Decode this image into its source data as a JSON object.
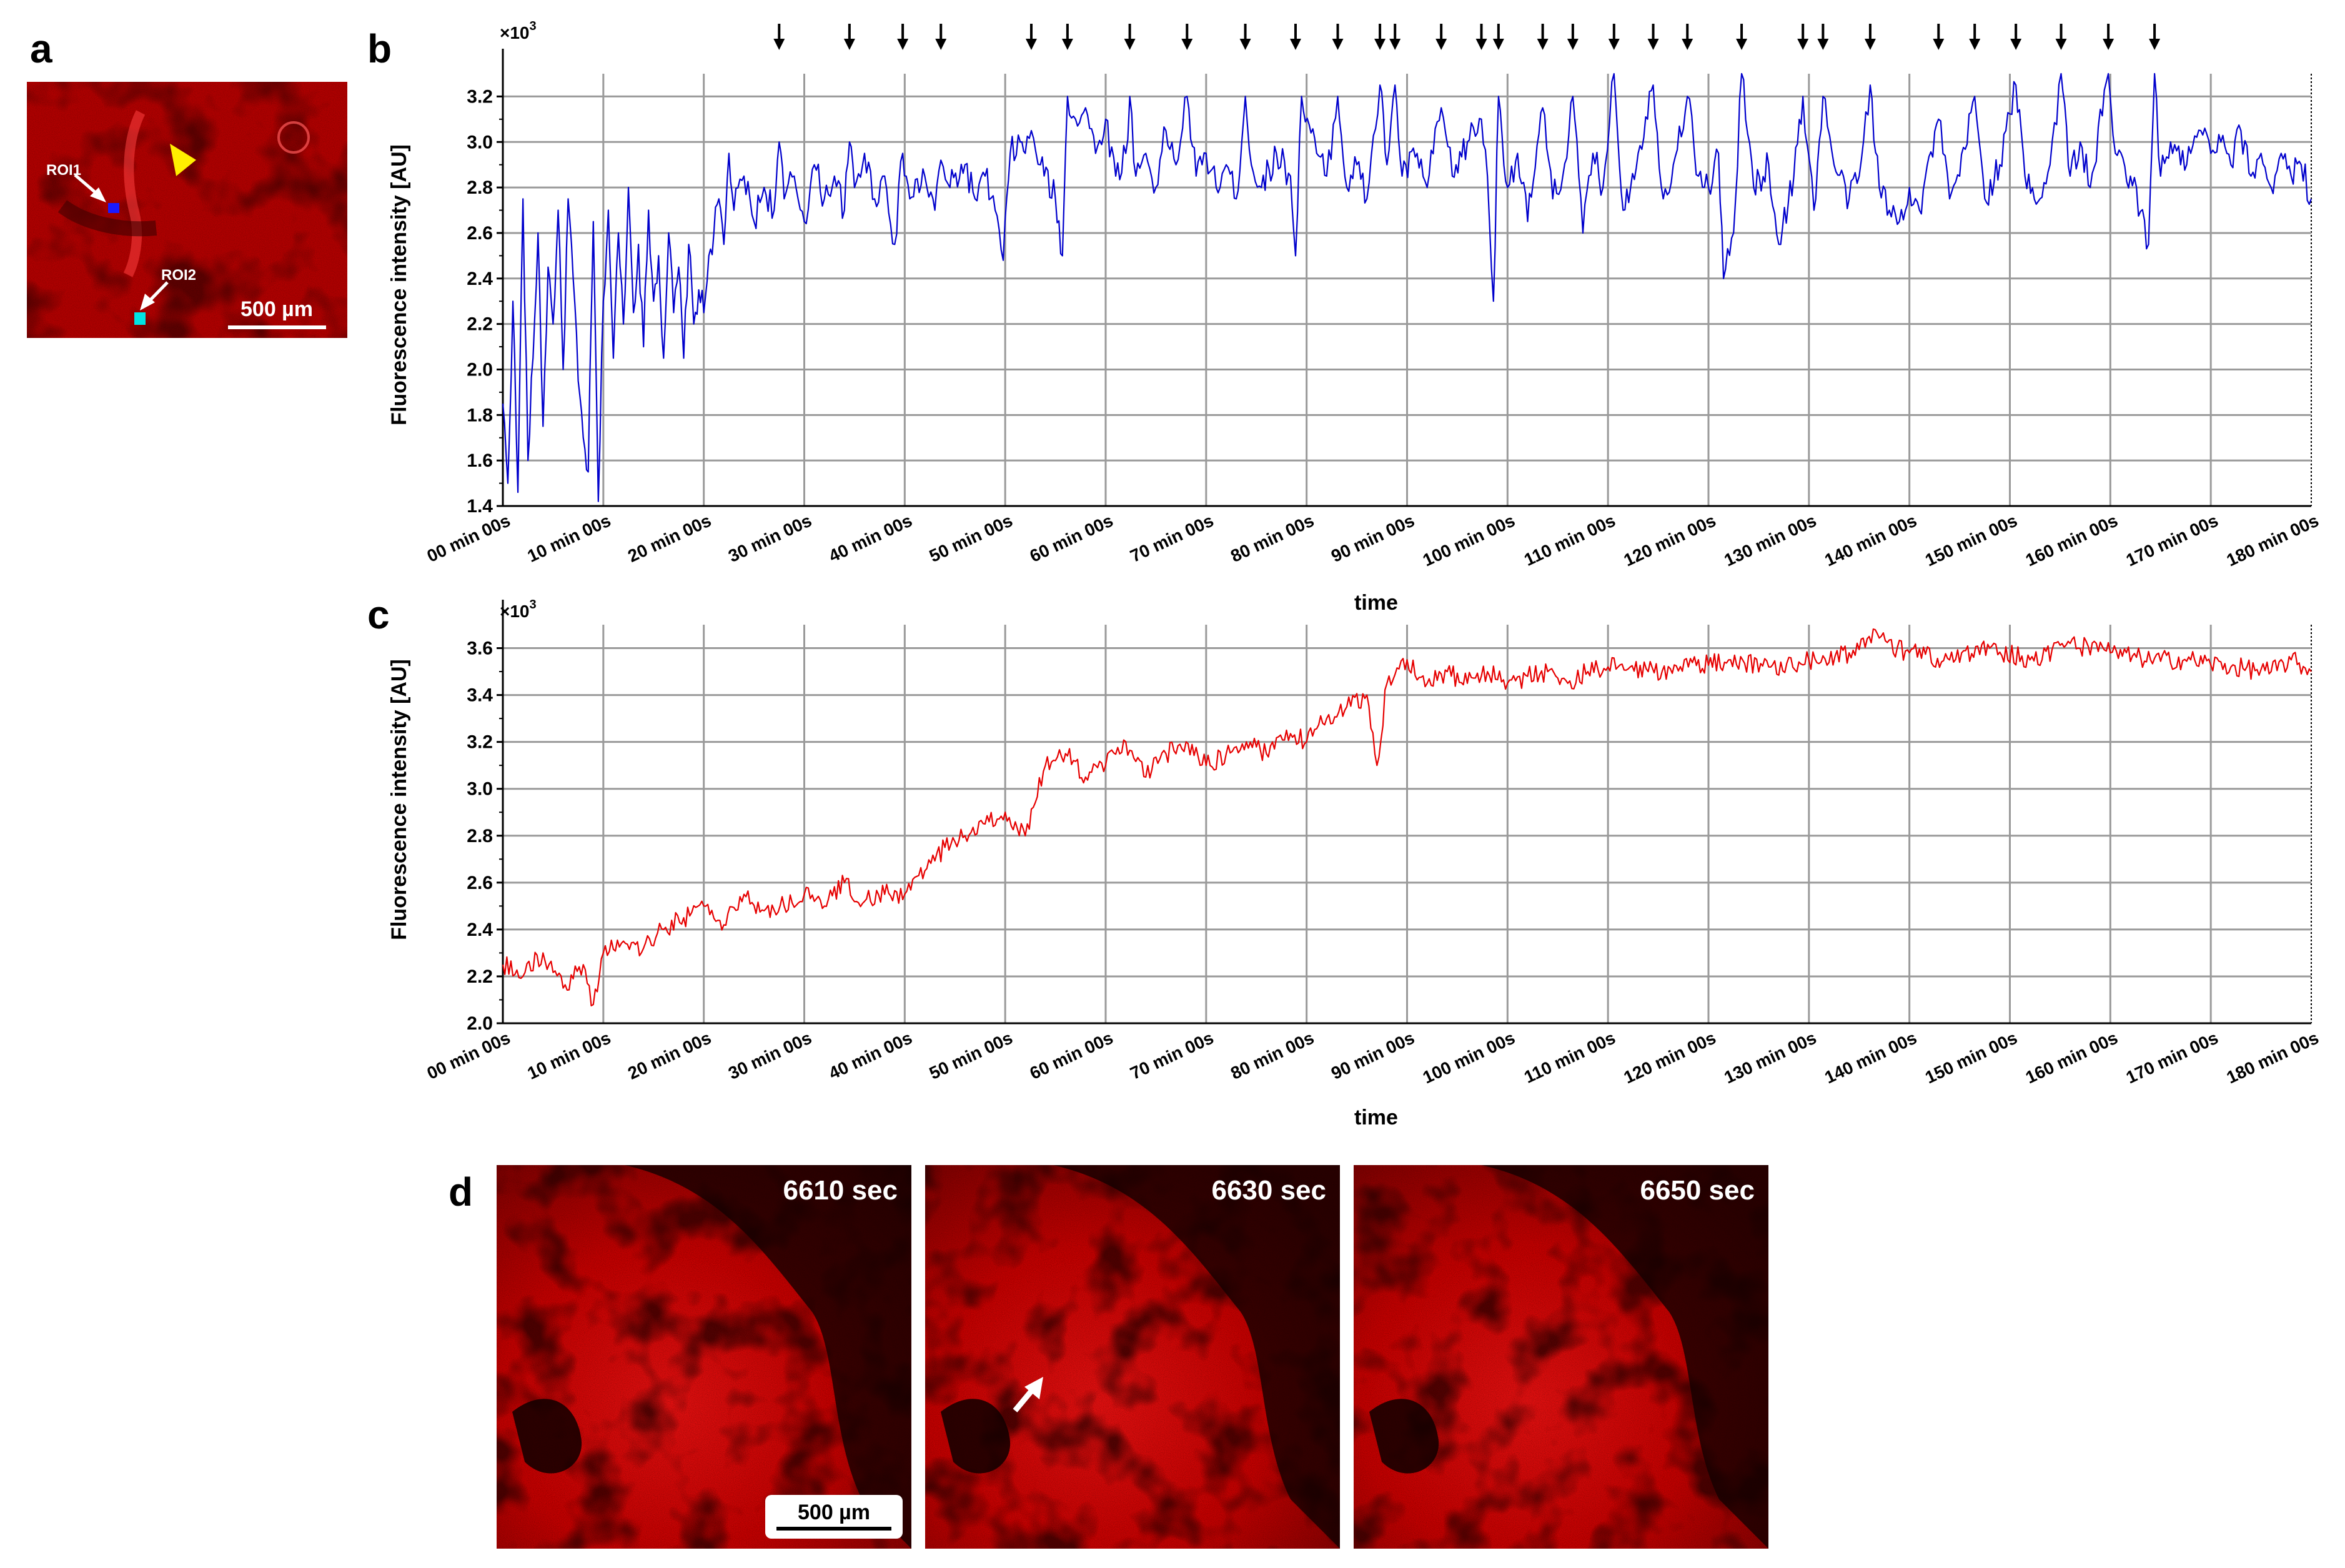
{
  "figure": {
    "panel_a": {
      "letter": "a",
      "roi1_label": "ROI1",
      "roi2_label": "ROI2",
      "scale_bar_label": "500 µm",
      "roi1_color": "#1a1aff",
      "roi2_color": "#00e5e5",
      "arrowhead_color": "#ffee00"
    },
    "panel_b_letter": "b",
    "panel_c_letter": "c",
    "panel_d": {
      "letter": "d",
      "frame_labels": [
        "6610 sec",
        "6630 sec",
        "6650 sec"
      ],
      "scale_bar_label": "500 µm"
    }
  },
  "chart_data": [
    {
      "id": "b",
      "type": "line",
      "color": "#0000cc",
      "xlabel": "time",
      "ylabel": "Fluorescence intensity [AU]",
      "y_multiplier": "×10",
      "y_multiplier_exp": "3",
      "xlim": [
        0,
        180
      ],
      "ylim": [
        1.4,
        3.3
      ],
      "x_ticks": [
        0,
        10,
        20,
        30,
        40,
        50,
        60,
        70,
        80,
        90,
        100,
        110,
        120,
        130,
        140,
        150,
        160,
        170,
        180
      ],
      "x_tick_labels": [
        "00 min 00s",
        "10 min 00s",
        "20 min 00s",
        "30 min 00s",
        "40 min 00s",
        "50 min 00s",
        "60 min 00s",
        "70 min 00s",
        "80 min 00s",
        "90 min 00s",
        "100 min 00s",
        "110 min 00s",
        "120 min 00s",
        "130 min 00s",
        "140 min 00s",
        "150 min 00s",
        "160 min 00s",
        "170 min 00s",
        "180 min 00s"
      ],
      "y_ticks": [
        1.4,
        1.6,
        1.8,
        2.0,
        2.2,
        2.4,
        2.6,
        2.8,
        3.0,
        3.2
      ],
      "y_tick_labels": [
        "1.4",
        "1.6",
        "1.8",
        "2.0",
        "2.2",
        "2.4",
        "2.6",
        "2.8",
        "3.0",
        "3.2"
      ],
      "grid": true,
      "peak_arrows_min": [
        27.5,
        34.5,
        39.8,
        43.6,
        52.6,
        56.2,
        62.4,
        68.1,
        73.9,
        78.9,
        83.1,
        87.3,
        88.8,
        93.4,
        97.4,
        99.1,
        103.5,
        106.5,
        110.6,
        114.5,
        117.9,
        123.3,
        129.4,
        131.4,
        136.1,
        142.9,
        146.5,
        150.6,
        155.1,
        159.8,
        164.4
      ],
      "series": [
        {
          "name": "ROI1",
          "x": [
            0,
            0.5,
            1,
            1.5,
            2,
            2.5,
            3,
            3.5,
            4,
            4.5,
            5,
            5.5,
            6,
            6.5,
            7,
            7.5,
            8,
            8.5,
            9,
            9.5,
            10,
            10.5,
            11,
            11.5,
            12,
            12.5,
            13,
            13.5,
            14,
            14.5,
            15,
            15.5,
            16,
            16.5,
            17,
            17.5,
            18,
            18.5,
            19,
            19.5,
            20,
            20.5,
            21,
            21.5,
            22,
            22.5,
            23,
            24,
            25,
            26,
            27,
            27.5,
            28,
            29,
            30,
            31,
            32,
            33,
            34,
            34.5,
            35,
            36,
            37,
            38,
            39,
            39.8,
            40.5,
            42,
            43,
            43.6,
            44.5,
            46,
            47,
            48,
            49,
            49.8,
            50.5,
            51.5,
            52,
            52.6,
            53.5,
            55,
            55.7,
            56.2,
            57,
            58,
            59,
            60,
            61,
            62,
            62.4,
            63,
            64,
            65,
            66,
            67,
            68.1,
            69,
            70,
            71,
            72,
            73,
            73.9,
            74.5,
            75.5,
            77,
            78.4,
            78.9,
            79.5,
            81,
            82,
            83.1,
            84,
            85,
            86,
            87.3,
            88,
            88.8,
            89.5,
            91,
            92,
            93.4,
            94.5,
            96,
            97.4,
            98,
            98.6,
            99.1,
            100,
            101,
            102,
            103.5,
            104.5,
            105.5,
            106.5,
            107.5,
            108.5,
            109.5,
            110.6,
            111.5,
            113,
            114.5,
            115.5,
            116.5,
            117.9,
            119,
            120,
            121,
            121.5,
            122.5,
            123.3,
            124.5,
            126,
            127,
            128.5,
            129.4,
            130.5,
            131.4,
            132.5,
            134,
            135,
            136.1,
            137,
            138,
            139,
            140,
            141,
            142.9,
            144,
            145,
            146.5,
            147.5,
            149,
            150.6,
            151.5,
            153,
            154,
            155.1,
            156,
            157,
            158,
            159.8,
            160.5,
            162,
            163.8,
            164.4,
            165,
            166,
            167,
            168,
            169,
            170,
            171,
            172,
            173,
            174,
            175,
            176,
            177,
            178,
            179,
            180
          ],
          "y": [
            1.85,
            1.5,
            2.3,
            1.46,
            2.75,
            1.6,
            2.05,
            2.6,
            1.75,
            2.45,
            2.2,
            2.7,
            2.0,
            2.75,
            2.4,
            1.95,
            1.7,
            1.55,
            2.65,
            1.42,
            2.3,
            2.7,
            2.05,
            2.6,
            2.2,
            2.8,
            2.25,
            2.55,
            2.1,
            2.7,
            2.3,
            2.5,
            2.05,
            2.6,
            2.25,
            2.45,
            2.05,
            2.55,
            2.2,
            2.35,
            2.25,
            2.5,
            2.6,
            2.75,
            2.55,
            2.95,
            2.7,
            2.85,
            2.65,
            2.8,
            2.7,
            3.0,
            2.75,
            2.85,
            2.65,
            2.9,
            2.75,
            2.85,
            2.7,
            3.0,
            2.8,
            2.95,
            2.75,
            2.85,
            2.55,
            2.95,
            2.75,
            2.85,
            2.7,
            2.92,
            2.8,
            2.9,
            2.75,
            2.85,
            2.7,
            2.48,
            2.95,
            3.0,
            2.95,
            3.05,
            2.9,
            2.75,
            2.5,
            3.2,
            3.1,
            3.15,
            2.95,
            3.1,
            2.85,
            2.95,
            3.2,
            2.85,
            2.95,
            2.8,
            3.05,
            2.9,
            3.2,
            2.85,
            2.95,
            2.8,
            2.9,
            2.75,
            3.2,
            2.9,
            2.8,
            2.95,
            2.85,
            2.5,
            3.2,
            2.95,
            2.85,
            3.2,
            2.8,
            2.9,
            2.75,
            3.25,
            2.9,
            3.25,
            2.85,
            2.95,
            2.8,
            3.15,
            2.85,
            3.0,
            3.1,
            2.85,
            2.3,
            3.2,
            2.8,
            2.95,
            2.65,
            3.15,
            2.75,
            2.85,
            3.2,
            2.6,
            2.95,
            2.8,
            3.3,
            2.7,
            2.95,
            3.25,
            2.75,
            2.9,
            3.2,
            2.85,
            2.8,
            2.95,
            2.4,
            2.6,
            3.3,
            2.8,
            2.9,
            2.55,
            2.85,
            3.2,
            2.7,
            3.2,
            2.9,
            2.75,
            2.85,
            3.25,
            2.8,
            2.7,
            2.65,
            2.8,
            2.7,
            3.1,
            2.75,
            2.85,
            3.2,
            2.75,
            2.9,
            3.25,
            2.85,
            2.75,
            2.9,
            3.3,
            2.85,
            3.0,
            2.8,
            3.3,
            2.95,
            2.85,
            2.55,
            3.3,
            2.85,
            3.0,
            2.9,
            2.95,
            3.05,
            2.95,
            3.0,
            2.9,
            3.05,
            2.85,
            2.95,
            2.8,
            2.95,
            2.85,
            2.9,
            2.75
          ]
        }
      ]
    },
    {
      "id": "c",
      "type": "line",
      "color": "#e60000",
      "xlabel": "time",
      "ylabel": "Fluorescence intensity [AU]",
      "y_multiplier": "×10",
      "y_multiplier_exp": "3",
      "xlim": [
        0,
        180
      ],
      "ylim": [
        2.0,
        3.7
      ],
      "x_ticks": [
        0,
        10,
        20,
        30,
        40,
        50,
        60,
        70,
        80,
        90,
        100,
        110,
        120,
        130,
        140,
        150,
        160,
        170,
        180
      ],
      "x_tick_labels": [
        "00 min 00s",
        "10 min 00s",
        "20 min 00s",
        "30 min 00s",
        "40 min 00s",
        "50 min 00s",
        "60 min 00s",
        "70 min 00s",
        "80 min 00s",
        "90 min 00s",
        "100 min 00s",
        "110 min 00s",
        "120 min 00s",
        "130 min 00s",
        "140 min 00s",
        "150 min 00s",
        "160 min 00s",
        "170 min 00s",
        "180 min 00s"
      ],
      "y_ticks": [
        2.0,
        2.2,
        2.4,
        2.6,
        2.8,
        3.0,
        3.2,
        3.4,
        3.6
      ],
      "y_tick_labels": [
        "2.0",
        "2.2",
        "2.4",
        "2.6",
        "2.8",
        "3.0",
        "3.2",
        "3.4",
        "3.6"
      ],
      "grid": true,
      "series": [
        {
          "name": "ROI2",
          "x": [
            0,
            2,
            4,
            6,
            8,
            9,
            10,
            12,
            14,
            16,
            18,
            20,
            22,
            24,
            26,
            28,
            30,
            32,
            34,
            36,
            38,
            40,
            42,
            44,
            46,
            48,
            50,
            52,
            54,
            56,
            58,
            60,
            62,
            64,
            66,
            68,
            70,
            72,
            74,
            76,
            78,
            80,
            82,
            84,
            86,
            87,
            88,
            90,
            92,
            94,
            96,
            98,
            100,
            102,
            104,
            106,
            108,
            110,
            114,
            118,
            122,
            126,
            130,
            134,
            136,
            140,
            144,
            148,
            152,
            156,
            160,
            164,
            168,
            172,
            176,
            178,
            180
          ],
          "y": [
            2.25,
            2.2,
            2.3,
            2.15,
            2.25,
            2.08,
            2.3,
            2.35,
            2.32,
            2.4,
            2.45,
            2.5,
            2.42,
            2.55,
            2.48,
            2.5,
            2.55,
            2.5,
            2.6,
            2.52,
            2.55,
            2.55,
            2.65,
            2.75,
            2.8,
            2.85,
            2.9,
            2.8,
            3.1,
            3.15,
            3.05,
            3.1,
            3.2,
            3.05,
            3.15,
            3.2,
            3.1,
            3.15,
            3.2,
            3.15,
            3.25,
            3.2,
            3.3,
            3.35,
            3.4,
            3.1,
            3.45,
            3.55,
            3.45,
            3.5,
            3.45,
            3.5,
            3.45,
            3.48,
            3.5,
            3.45,
            3.5,
            3.52,
            3.5,
            3.52,
            3.55,
            3.52,
            3.55,
            3.58,
            3.65,
            3.58,
            3.55,
            3.6,
            3.55,
            3.62,
            3.58,
            3.55,
            3.55,
            3.52,
            3.5,
            3.55,
            3.5
          ]
        }
      ]
    }
  ]
}
